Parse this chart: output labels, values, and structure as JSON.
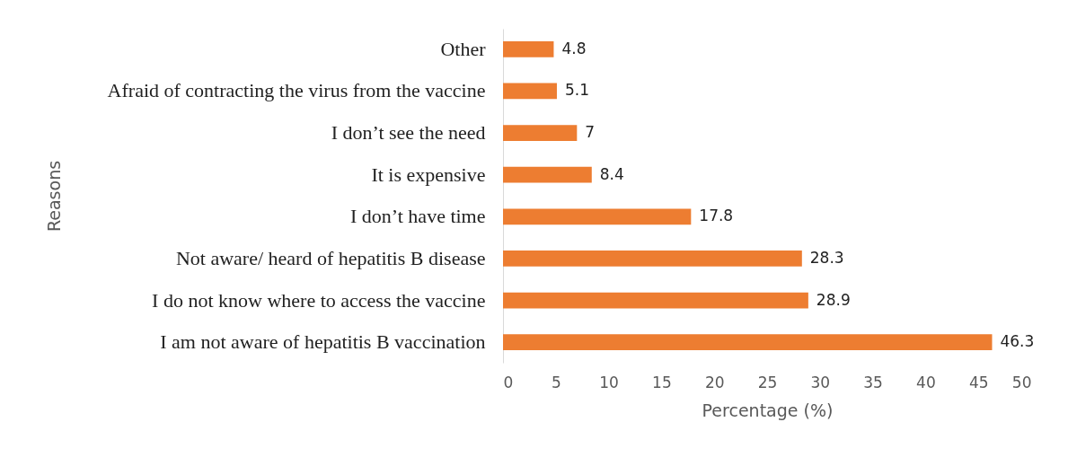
{
  "chart_data": {
    "type": "bar",
    "orientation": "horizontal",
    "xlabel": "Percentage (%)",
    "ylabel": "Reasons",
    "categories": [
      "Other",
      "Afraid of contracting the virus from the vaccine",
      "I don’t see the need",
      "It is expensive",
      "I don’t have time",
      "Not aware/ heard of hepatitis B disease",
      "I do not know where to access the vaccine",
      "I am not aware of hepatitis B vaccination"
    ],
    "values": [
      4.8,
      5.1,
      7,
      8.4,
      17.8,
      28.3,
      28.9,
      46.3
    ],
    "color": "#ed7d31",
    "xlim": [
      0,
      50
    ],
    "xticks": [
      0,
      5,
      10,
      15,
      20,
      25,
      30,
      35,
      40,
      45,
      50
    ],
    "data_labels": true,
    "grid": false
  }
}
